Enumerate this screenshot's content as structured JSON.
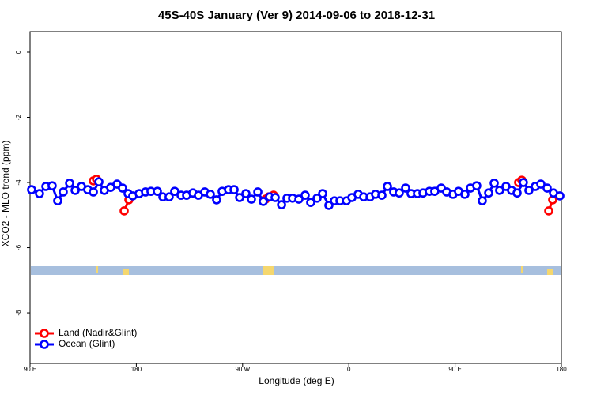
{
  "chart_data": {
    "type": "line",
    "title": "45S-40S January (Ver 9)   2014-09-06 to 2018-12-31",
    "x_label": "Longitude (deg E)",
    "y_label": "XCO2 - MLO trend (ppm)",
    "xlim": [
      90,
      540
    ],
    "ylim": [
      -9.55,
      0.63
    ],
    "xticks": [
      {
        "value": 90,
        "label": "90 E"
      },
      180,
      {
        "value": 270,
        "label": "90 W"
      },
      {
        "value": 360,
        "label": "0"
      },
      {
        "value": 450,
        "label": "90 E"
      },
      {
        "value": 540,
        "label": "180"
      }
    ],
    "yticks": [
      0,
      -2,
      -4,
      -6,
      -8
    ],
    "legend": "bottom-left",
    "series": [
      {
        "name": "Land (Nadir&Glint)",
        "color": "#ff0000",
        "x": [
          143.6,
          146.3,
          null,
          169.7,
          173.7,
          null,
          289.5,
          292.2,
          296.2,
          null,
          503.8,
          506.5,
          null,
          529.3,
          532.6
        ],
        "values": [
          -3.95,
          -3.9,
          null,
          -4.87,
          -4.53,
          null,
          -4.51,
          -4.44,
          -4.39,
          null,
          -4.0,
          -3.93,
          null,
          -4.87,
          -4.53
        ]
      },
      {
        "name": "Ocean (Glint)",
        "color": "#0000ff",
        "x": [
          91.3,
          98.0,
          103.4,
          108.7,
          113.4,
          118.1,
          123.5,
          128.2,
          133.5,
          138.9,
          143.6,
          148.3,
          152.9,
          158.3,
          163.7,
          168.3,
          173.0,
          177.0,
          182.4,
          187.8,
          192.4,
          197.8,
          202.5,
          207.8,
          212.5,
          217.9,
          222.6,
          227.9,
          232.6,
          238.0,
          242.7,
          248.0,
          252.7,
          258.1,
          262.8,
          267.5,
          272.8,
          277.5,
          282.9,
          287.5,
          292.9,
          297.6,
          303.0,
          307.6,
          312.3,
          317.7,
          323.0,
          327.7,
          333.1,
          337.8,
          343.1,
          347.8,
          352.5,
          357.9,
          362.6,
          367.9,
          372.6,
          378.0,
          382.6,
          388.0,
          392.7,
          398.0,
          402.7,
          408.1,
          412.7,
          418.1,
          422.8,
          428.2,
          432.8,
          438.2,
          442.9,
          448.2,
          452.9,
          458.3,
          463.0,
          468.3,
          473.0,
          478.4,
          483.1,
          487.7,
          493.1,
          497.8,
          502.5,
          507.8,
          512.5,
          517.9,
          522.6,
          527.9,
          533.3,
          538.7
        ],
        "values": [
          -4.22,
          -4.34,
          -4.12,
          -4.1,
          -4.56,
          -4.29,
          -4.02,
          -4.24,
          -4.12,
          -4.22,
          -4.29,
          -3.98,
          -4.24,
          -4.15,
          -4.05,
          -4.17,
          -4.34,
          -4.41,
          -4.34,
          -4.29,
          -4.27,
          -4.27,
          -4.44,
          -4.44,
          -4.27,
          -4.39,
          -4.39,
          -4.32,
          -4.39,
          -4.29,
          -4.36,
          -4.53,
          -4.27,
          -4.22,
          -4.22,
          -4.46,
          -4.34,
          -4.51,
          -4.29,
          -4.58,
          -4.44,
          -4.46,
          -4.68,
          -4.48,
          -4.48,
          -4.51,
          -4.39,
          -4.61,
          -4.48,
          -4.34,
          -4.7,
          -4.56,
          -4.56,
          -4.56,
          -4.46,
          -4.36,
          -4.44,
          -4.44,
          -4.36,
          -4.39,
          -4.12,
          -4.29,
          -4.32,
          -4.17,
          -4.34,
          -4.34,
          -4.32,
          -4.27,
          -4.27,
          -4.17,
          -4.29,
          -4.36,
          -4.27,
          -4.36,
          -4.17,
          -4.1,
          -4.56,
          -4.32,
          -4.02,
          -4.24,
          -4.12,
          -4.24,
          -4.32,
          -4.0,
          -4.24,
          -4.12,
          -4.05,
          -4.17,
          -4.32,
          -4.41
        ]
      }
    ]
  }
}
